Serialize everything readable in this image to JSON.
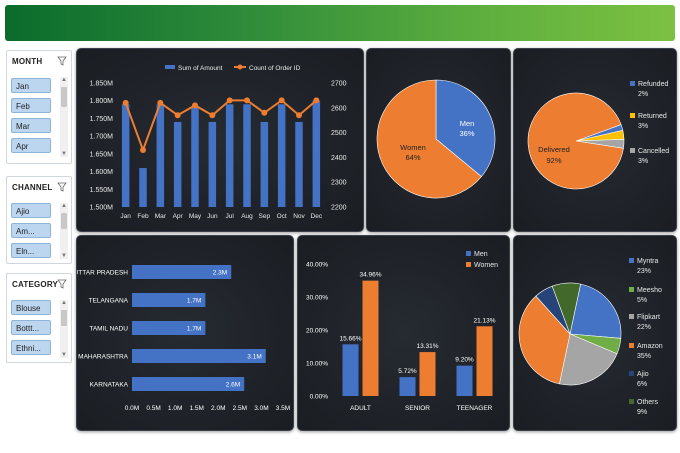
{
  "slicers": [
    {
      "title": "MONTH",
      "items": [
        "Jan",
        "Feb",
        "Mar",
        "Apr"
      ]
    },
    {
      "title": "CHANNEL",
      "items": [
        "Ajio",
        "Am...",
        "Eln..."
      ]
    },
    {
      "title": "CATEGORY",
      "items": [
        "Blouse",
        "Bottt...",
        "Ethni..."
      ]
    }
  ],
  "colors": {
    "blue": "#4472c4",
    "orange": "#ed7d31",
    "gray": "#a5a5a5",
    "yellow": "#ffc000",
    "green": "#70ad47",
    "darkgreen": "#43682b",
    "navy": "#264478"
  },
  "chart_data": [
    {
      "type": "bar",
      "legend": [
        "Sum of Amount",
        "Count of Order ID"
      ],
      "categories": [
        "Jan",
        "Feb",
        "Mar",
        "Apr",
        "May",
        "Jun",
        "Jul",
        "Aug",
        "Sep",
        "Oct",
        "Nov",
        "Dec"
      ],
      "series": [
        {
          "name": "Sum of Amount",
          "values": [
            1.79,
            1.61,
            1.79,
            1.74,
            1.78,
            1.74,
            1.79,
            1.79,
            1.74,
            1.79,
            1.74,
            1.8
          ]
        },
        {
          "name": "Count of Order ID",
          "values": [
            2620,
            2430,
            2620,
            2570,
            2610,
            2570,
            2630,
            2630,
            2580,
            2630,
            2570,
            2630
          ]
        }
      ],
      "y_ticks": [
        "1.850M",
        "1.800M",
        "1.750M",
        "1.700M",
        "1.650M",
        "1.600M",
        "1.550M",
        "1.500M"
      ],
      "ylim": [
        1.5,
        1.85
      ],
      "y2_ticks": [
        "2700",
        "2600",
        "2500",
        "2400",
        "2300",
        "2200"
      ],
      "y2lim": [
        2200,
        2700
      ],
      "legend_position": "top"
    },
    {
      "type": "pie",
      "slices": [
        {
          "label": "Men",
          "pct_label": "36%",
          "value": 36,
          "color": "#4472c4"
        },
        {
          "label": "Women",
          "pct_label": "64%",
          "value": 64,
          "color": "#ed7d31"
        }
      ]
    },
    {
      "type": "pie",
      "legend_position": "right",
      "slices": [
        {
          "label": "Refunded",
          "pct_label": "2%",
          "value": 2,
          "color": "#4472c4"
        },
        {
          "label": "Returned",
          "pct_label": "3%",
          "value": 3,
          "color": "#ffc000"
        },
        {
          "label": "Cancelled",
          "pct_label": "3%",
          "value": 3,
          "color": "#a5a5a5"
        },
        {
          "label": "Delivered",
          "pct_label": "92%",
          "value": 92,
          "color": "#ed7d31"
        }
      ]
    },
    {
      "type": "bar",
      "orientation": "horizontal",
      "categories": [
        "UTTAR PRADESH",
        "TELANGANA",
        "TAMIL NADU",
        "MAHARASHTRA",
        "KARNATAKA"
      ],
      "values": [
        2.3,
        1.7,
        1.7,
        3.1,
        2.6
      ],
      "value_labels": [
        "2.3M",
        "1.7M",
        "1.7M",
        "3.1M",
        "2.6M"
      ],
      "x_ticks": [
        "0.0M",
        "0.5M",
        "1.0M",
        "1.5M",
        "2.0M",
        "2.5M",
        "3.0M",
        "3.5M"
      ],
      "xlim": [
        0,
        3.5
      ]
    },
    {
      "type": "bar",
      "categories": [
        "ADULT",
        "SENIOR",
        "TEENAGER"
      ],
      "series": [
        {
          "name": "Men",
          "values": [
            15.66,
            5.72,
            9.2
          ],
          "labels": [
            "15.66%",
            "5.72%",
            "9.20%"
          ],
          "color": "#4472c4"
        },
        {
          "name": "Women",
          "values": [
            34.96,
            13.31,
            21.13
          ],
          "labels": [
            "34.96%",
            "13.31%",
            "21.13%"
          ],
          "color": "#ed7d31"
        }
      ],
      "y_ticks": [
        "40.00%",
        "30.00%",
        "20.00%",
        "10.00%",
        "0.00%"
      ],
      "ylim": [
        0,
        40
      ],
      "legend_position": "top-right"
    },
    {
      "type": "pie",
      "legend_position": "right",
      "slices": [
        {
          "label": "Myntra",
          "pct_label": "23%",
          "value": 23,
          "color": "#4472c4"
        },
        {
          "label": "Meesho",
          "pct_label": "5%",
          "value": 5,
          "color": "#70ad47"
        },
        {
          "label": "Flipkart",
          "pct_label": "22%",
          "value": 22,
          "color": "#a5a5a5"
        },
        {
          "label": "Amazon",
          "pct_label": "35%",
          "value": 35,
          "color": "#ed7d31"
        },
        {
          "label": "Ajio",
          "pct_label": "6%",
          "value": 6,
          "color": "#264478"
        },
        {
          "label": "Others",
          "pct_label": "9%",
          "value": 9,
          "color": "#43682b"
        }
      ]
    }
  ]
}
